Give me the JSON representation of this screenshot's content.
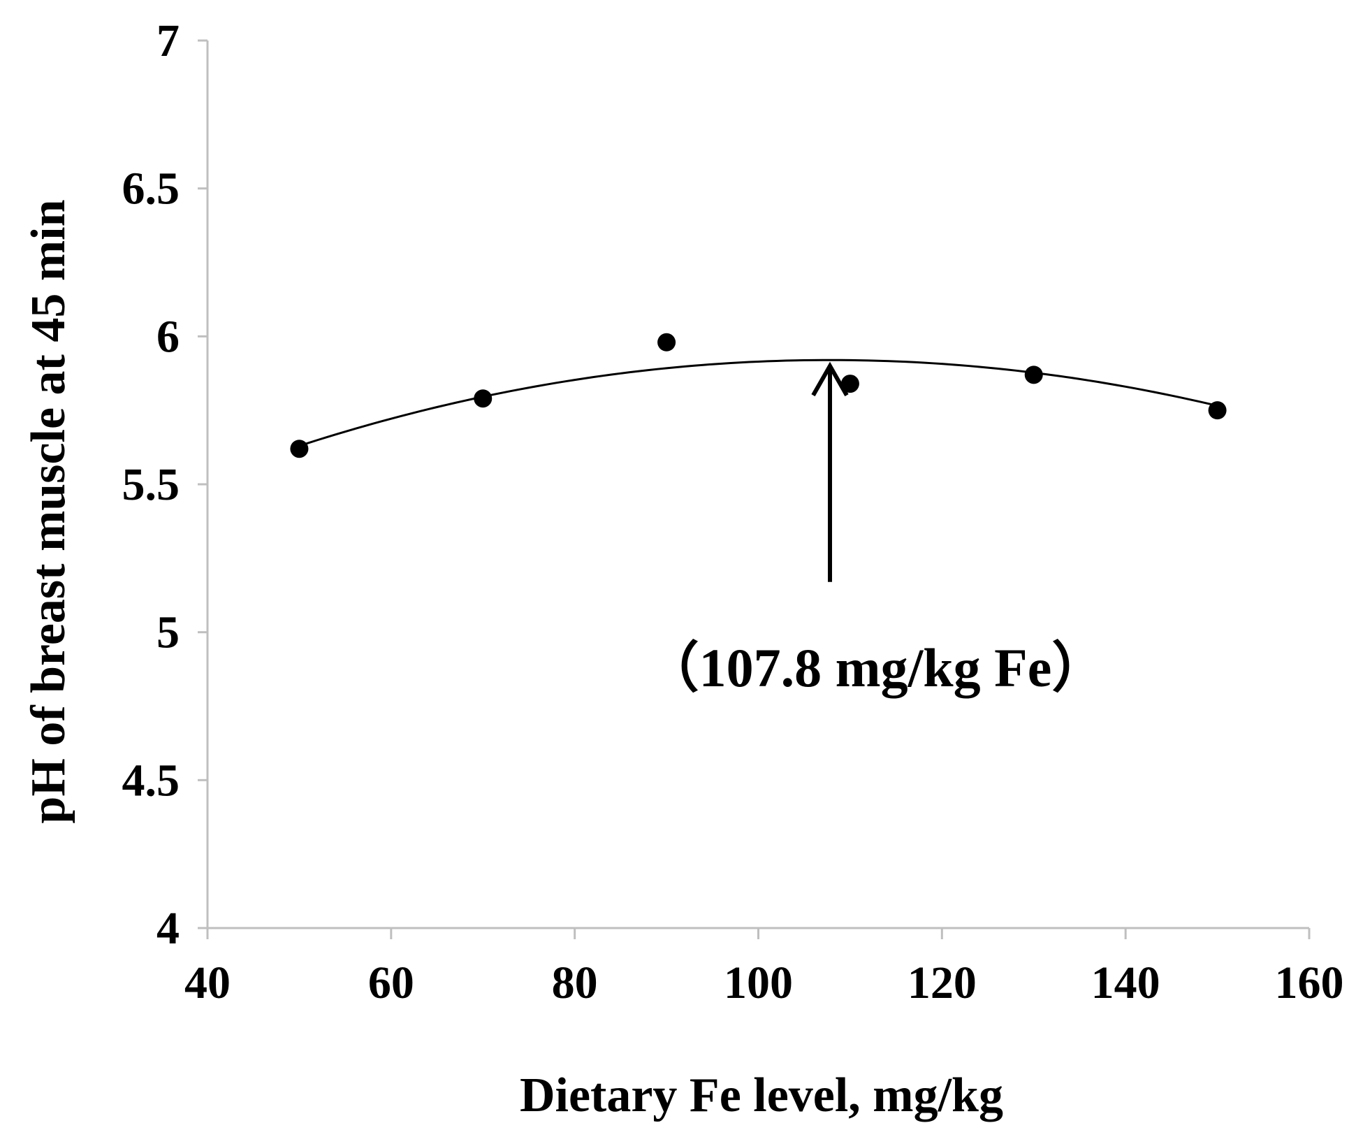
{
  "chart_data": {
    "type": "scatter",
    "xlabel": "Dietary Fe level, mg/kg",
    "ylabel": "pH of breast muscle at 45 min",
    "xlim": [
      40,
      160
    ],
    "ylim": [
      4,
      7
    ],
    "x_ticks": [
      40,
      60,
      80,
      100,
      120,
      140,
      160
    ],
    "x_tick_labels": [
      "40",
      "60",
      "80",
      "100",
      "120",
      "140",
      "160"
    ],
    "y_ticks": [
      4,
      4.5,
      5,
      5.5,
      6,
      6.5,
      7
    ],
    "y_tick_labels": [
      "4",
      "4.5",
      "5",
      "5.5",
      "6",
      "6.5",
      "7"
    ],
    "grid": false,
    "colors": {
      "points": "#000000",
      "curve": "#000000",
      "axis": "#bfbfbf"
    },
    "series": [
      {
        "points": [
          {
            "x": 50,
            "y": 5.62
          },
          {
            "x": 70,
            "y": 5.79
          },
          {
            "x": 90,
            "y": 5.98
          },
          {
            "x": 110,
            "y": 5.84
          },
          {
            "x": 130,
            "y": 5.87
          },
          {
            "x": 150,
            "y": 5.75
          }
        ]
      }
    ],
    "fit_curve": {
      "type": "quadratic",
      "x_start": 50,
      "x_end": 150,
      "x_vertex": 107.8,
      "y_vertex": 5.92,
      "y_at_start": 5.63
    },
    "annotation": {
      "text": "（107.8 mg/kg  Fe）",
      "arrow_x": 107.8,
      "arrow_y_top": 5.9,
      "arrow_y_bottom": 5.17
    }
  }
}
